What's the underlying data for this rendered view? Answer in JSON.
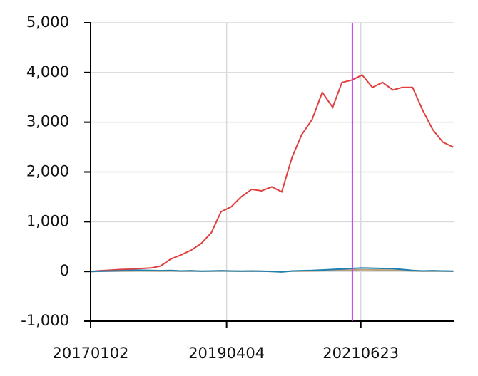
{
  "chart_data": {
    "type": "line",
    "x": [
      "20170102",
      "20170301",
      "20170501",
      "20170703",
      "20170901",
      "20171101",
      "20180102",
      "20180301",
      "20180502",
      "20180702",
      "20180903",
      "20181101",
      "20190102",
      "20190301",
      "20190502",
      "20190701",
      "20190902",
      "20191101",
      "20200102",
      "20200302",
      "20200504",
      "20200701",
      "20200901",
      "20201102",
      "20210104",
      "20210301",
      "20210503",
      "20210701",
      "20210901",
      "20211101",
      "20220103",
      "20220301",
      "20220502",
      "20220701",
      "20220901",
      "20221101",
      "20230103"
    ],
    "series": [
      {
        "color": "#b8a07a",
        "values": [
          0,
          3,
          5,
          8,
          10,
          12,
          10,
          8,
          10,
          6,
          8,
          4,
          6,
          8,
          6,
          4,
          6,
          4,
          2,
          -4,
          5,
          8,
          10,
          15,
          20,
          25,
          30,
          35,
          32,
          30,
          28,
          20,
          10,
          5,
          8,
          5,
          3
        ]
      },
      {
        "color": "#e04040",
        "values": [
          0,
          15,
          25,
          40,
          45,
          60,
          70,
          110,
          250,
          330,
          430,
          560,
          780,
          1200,
          1300,
          1500,
          1650,
          1620,
          1700,
          1600,
          2300,
          2750,
          3050,
          3600,
          3300,
          3800,
          3850,
          3950,
          3700,
          3800,
          3650,
          3700,
          3700,
          3250,
          2850,
          2600,
          2500
        ]
      },
      {
        "color": "#2080b0",
        "values": [
          0,
          5,
          10,
          15,
          20,
          25,
          20,
          15,
          20,
          10,
          15,
          5,
          10,
          15,
          10,
          5,
          10,
          5,
          0,
          -10,
          10,
          15,
          20,
          30,
          40,
          50,
          60,
          70,
          65,
          60,
          55,
          40,
          20,
          10,
          15,
          10,
          5
        ]
      }
    ],
    "xlim": [
      "20170102",
      "20230110"
    ],
    "xticks": [
      "20170102",
      "20190404",
      "20210623"
    ],
    "ylim": [
      -1000,
      5000
    ],
    "yticks": [
      {
        "value": -1000,
        "label": "-1,000"
      },
      0,
      {
        "value": 1000,
        "label": "1,000"
      },
      {
        "value": 2000,
        "label": "2,000"
      },
      {
        "value": 3000,
        "label": "3,000"
      },
      {
        "value": 4000,
        "label": "4,000"
      },
      {
        "value": 5000,
        "label": "5,000"
      }
    ],
    "vline": {
      "x": "20210503",
      "color": "#cc33ee"
    },
    "grid": true
  }
}
